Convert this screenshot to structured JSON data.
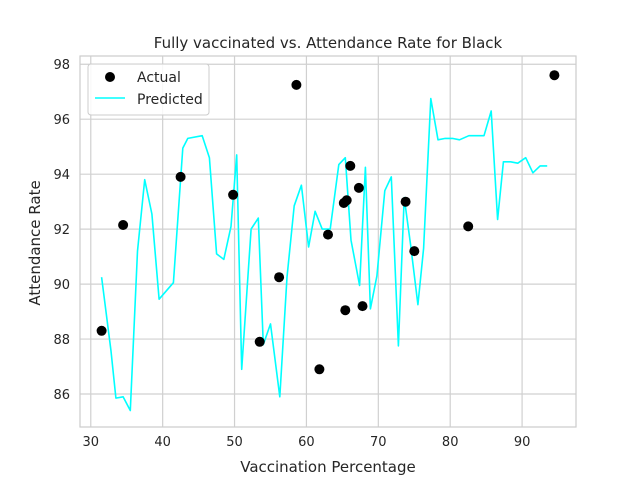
{
  "chart_data": {
    "type": "scatter",
    "title": "Fully vaccinated vs. Attendance Rate for Black",
    "xlabel": "Vaccination Percentage",
    "ylabel": "Attendance Rate",
    "xlim": [
      28.5,
      97.5
    ],
    "ylim": [
      84.8,
      98.3
    ],
    "xticks": [
      30,
      40,
      50,
      60,
      70,
      80,
      90
    ],
    "yticks": [
      86,
      88,
      90,
      92,
      94,
      96,
      98
    ],
    "grid": true,
    "legend_position": "top-left",
    "colors": {
      "actual": "#000000",
      "predicted": "#00ffff",
      "grid": "#d0d0d0",
      "axes": "#cccccc"
    },
    "series": [
      {
        "name": "Actual",
        "kind": "scatter",
        "x": [
          31.5,
          34.5,
          42.5,
          49.8,
          53.5,
          56.2,
          58.6,
          61.8,
          63.0,
          65.2,
          65.4,
          65.6,
          66.1,
          67.3,
          67.8,
          73.8,
          75.0,
          82.5,
          94.5
        ],
        "y": [
          88.3,
          92.15,
          93.9,
          93.25,
          87.9,
          90.25,
          97.25,
          86.9,
          91.8,
          92.95,
          89.05,
          93.05,
          94.3,
          93.5,
          89.2,
          93.0,
          91.2,
          92.1,
          97.6
        ]
      },
      {
        "name": "Predicted",
        "kind": "line",
        "x": [
          31.5,
          32.8,
          33.5,
          34.5,
          35.5,
          36.5,
          37.5,
          38.5,
          39.5,
          41.5,
          42.8,
          43.5,
          45.5,
          46.5,
          47.5,
          48.5,
          49.5,
          50.3,
          51.0,
          52.3,
          53.3,
          54.0,
          55.0,
          56.3,
          57.3,
          58.3,
          59.3,
          60.3,
          61.2,
          62.2,
          63.3,
          64.5,
          65.4,
          66.2,
          67.4,
          68.2,
          68.9,
          69.8,
          70.9,
          71.8,
          72.8,
          73.6,
          74.5,
          75.5,
          76.3,
          77.3,
          78.3,
          79.3,
          80.3,
          81.3,
          82.6,
          83.6,
          84.7,
          85.7,
          86.6,
          87.4,
          88.4,
          89.4,
          90.5,
          91.5,
          92.5,
          93.5
        ],
        "y": [
          90.25,
          87.6,
          85.85,
          85.9,
          85.4,
          91.2,
          93.8,
          92.55,
          89.45,
          90.05,
          94.95,
          95.3,
          95.4,
          94.6,
          91.1,
          90.9,
          92.1,
          94.7,
          86.9,
          92.0,
          92.4,
          87.8,
          88.55,
          85.9,
          90.25,
          92.85,
          93.6,
          91.35,
          92.65,
          92.0,
          92.0,
          94.35,
          94.6,
          91.6,
          89.95,
          94.25,
          89.1,
          90.3,
          93.4,
          93.9,
          87.75,
          93.15,
          91.4,
          89.25,
          91.3,
          96.75,
          95.25,
          95.3,
          95.3,
          95.25,
          95.4,
          95.4,
          95.4,
          96.3,
          92.35,
          94.45,
          94.45,
          94.4,
          94.6,
          94.05,
          94.3,
          94.3
        ]
      }
    ]
  }
}
